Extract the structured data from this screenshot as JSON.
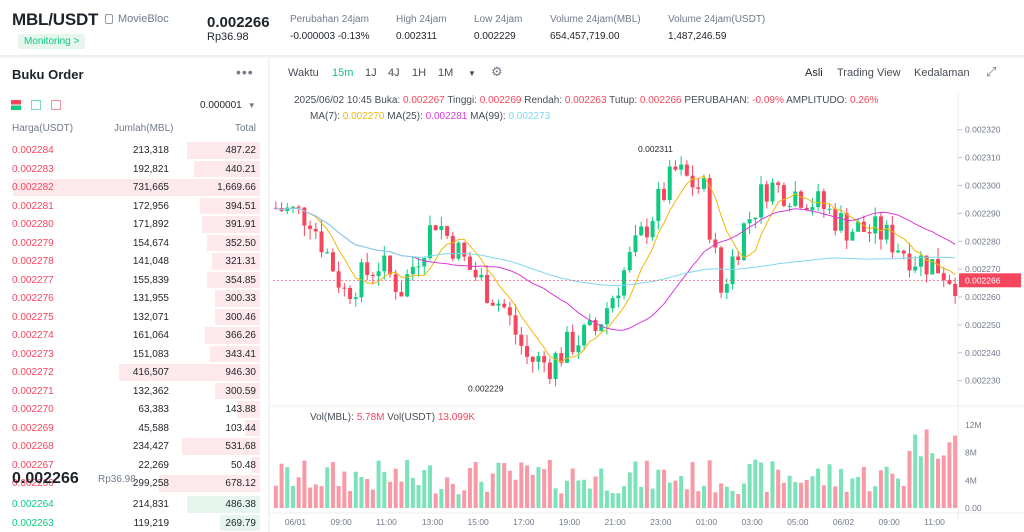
{
  "header": {
    "pair": "MBL/USDT",
    "coin_name": "MovieBloc",
    "monitoring": "Monitoring >",
    "last_price": "0.002266",
    "last_price_idr": "Rp36.98",
    "stats": [
      {
        "label": "Perubahan 24jam",
        "value": "-0.000003 -0.13%",
        "neg": true
      },
      {
        "label": "High 24jam",
        "value": "0.002311"
      },
      {
        "label": "Low 24jam",
        "value": "0.002229"
      },
      {
        "label": "Volume 24jam(MBL)",
        "value": "654,457,719.00"
      },
      {
        "label": "Volume 24jam(USDT)",
        "value": "1,487,246.59"
      }
    ]
  },
  "orderbook": {
    "title": "Buku Order",
    "precision": "0.000001",
    "col_price": "Harga(USDT)",
    "col_amount": "Jumlah(MBL)",
    "col_total": "Total",
    "asks": [
      [
        "0.002284",
        "213,318",
        "487.22"
      ],
      [
        "0.002283",
        "192,821",
        "440.21"
      ],
      [
        "0.002282",
        "731,665",
        "1,669.66"
      ],
      [
        "0.002281",
        "172,956",
        "394.51"
      ],
      [
        "0.002280",
        "171,892",
        "391.91"
      ],
      [
        "0.002279",
        "154,674",
        "352.50"
      ],
      [
        "0.002278",
        "141,048",
        "321.31"
      ],
      [
        "0.002277",
        "155,839",
        "354.85"
      ],
      [
        "0.002276",
        "131,955",
        "300.33"
      ],
      [
        "0.002275",
        "132,071",
        "300.46"
      ],
      [
        "0.002274",
        "161,064",
        "366.26"
      ],
      [
        "0.002273",
        "151,083",
        "343.41"
      ],
      [
        "0.002272",
        "416,507",
        "946.30"
      ],
      [
        "0.002271",
        "132,362",
        "300.59"
      ],
      [
        "0.002270",
        "63,383",
        "143.88"
      ],
      [
        "0.002269",
        "45,588",
        "103.44"
      ],
      [
        "0.002268",
        "234,427",
        "531.68"
      ],
      [
        "0.002267",
        "22,269",
        "50.48"
      ],
      [
        "0.002266",
        "299,258",
        "678.12"
      ]
    ],
    "ask_depth": [
      0.29,
      0.26,
      0.98,
      0.24,
      0.23,
      0.21,
      0.19,
      0.21,
      0.18,
      0.18,
      0.22,
      0.2,
      0.56,
      0.18,
      0.09,
      0.06,
      0.31,
      0.03,
      0.4
    ],
    "mid_price": "0.002266",
    "mid_idr": "Rp36.98",
    "bids": [
      [
        "0.002264",
        "214,831",
        "486.38"
      ],
      [
        "0.002263",
        "119,219",
        "269.79"
      ]
    ],
    "bid_depth": [
      0.29,
      0.16
    ]
  },
  "toolbar": {
    "time_label": "Waktu",
    "intervals": [
      "15m",
      "1J",
      "4J",
      "1H",
      "1M"
    ],
    "active_interval": "15m",
    "views": [
      "Asli",
      "Trading View",
      "Kedalaman"
    ],
    "active_view": "Asli"
  },
  "chart_info": {
    "date": "2025/06/02 10:45",
    "open_label": "Buka:",
    "open": "0.002267",
    "high_label": "Tinggi:",
    "high": "0.002269",
    "low_label": "Rendah:",
    "low": "0.002263",
    "close_label": "Tutup:",
    "close": "0.002266",
    "change_label": "PERUBAHAN:",
    "change": "-0.09%",
    "amp_label": "AMPLITUDO:",
    "amp": "0.26%",
    "ma7_label": "MA(7):",
    "ma7": "0.002270",
    "ma25_label": "MA(25):",
    "ma25": "0.002281",
    "ma99_label": "MA(99):",
    "ma99": "0.002273",
    "vol_label": "Vol(MBL):",
    "vol": "5.78M",
    "volu_label": "Vol(USDT)",
    "volu": "13.099K",
    "max_label": "0.002311",
    "min_label": "0.002229",
    "current": "0.002266"
  },
  "chart_data": {
    "type": "candlestick",
    "ylim": [
      0.002222,
      0.002326
    ],
    "yticks": [
      "0.002320",
      "0.002310",
      "0.002300",
      "0.002290",
      "0.002280",
      "0.002270",
      "0.002260",
      "0.002250",
      "0.002240",
      "0.002230"
    ],
    "ytick_values": [
      0.00232,
      0.00231,
      0.0023,
      0.00229,
      0.00228,
      0.00227,
      0.00226,
      0.00225,
      0.00224,
      0.00223
    ],
    "vol_ticks": [
      "12M",
      "8M",
      "4M",
      "0.00"
    ],
    "vol_tick_values": [
      12,
      8,
      4,
      0
    ],
    "xticks": [
      "06/01",
      "09:00",
      "11:00",
      "13:00",
      "15:00",
      "17:00",
      "19:00",
      "21:00",
      "23:00",
      "01:00",
      "03:00",
      "05:00",
      "06/02",
      "09:00",
      "11:00"
    ],
    "xtick_index": [
      4,
      12,
      20,
      28,
      36,
      44,
      52,
      60,
      68,
      76,
      84,
      92,
      100,
      108,
      116
    ],
    "colors": {
      "up": "#0ecb81",
      "down": "#f6465d",
      "ma7": "#f0b90b",
      "ma25": "#d83bd8",
      "ma99": "#7fd8f0"
    },
    "candles": "generated"
  }
}
